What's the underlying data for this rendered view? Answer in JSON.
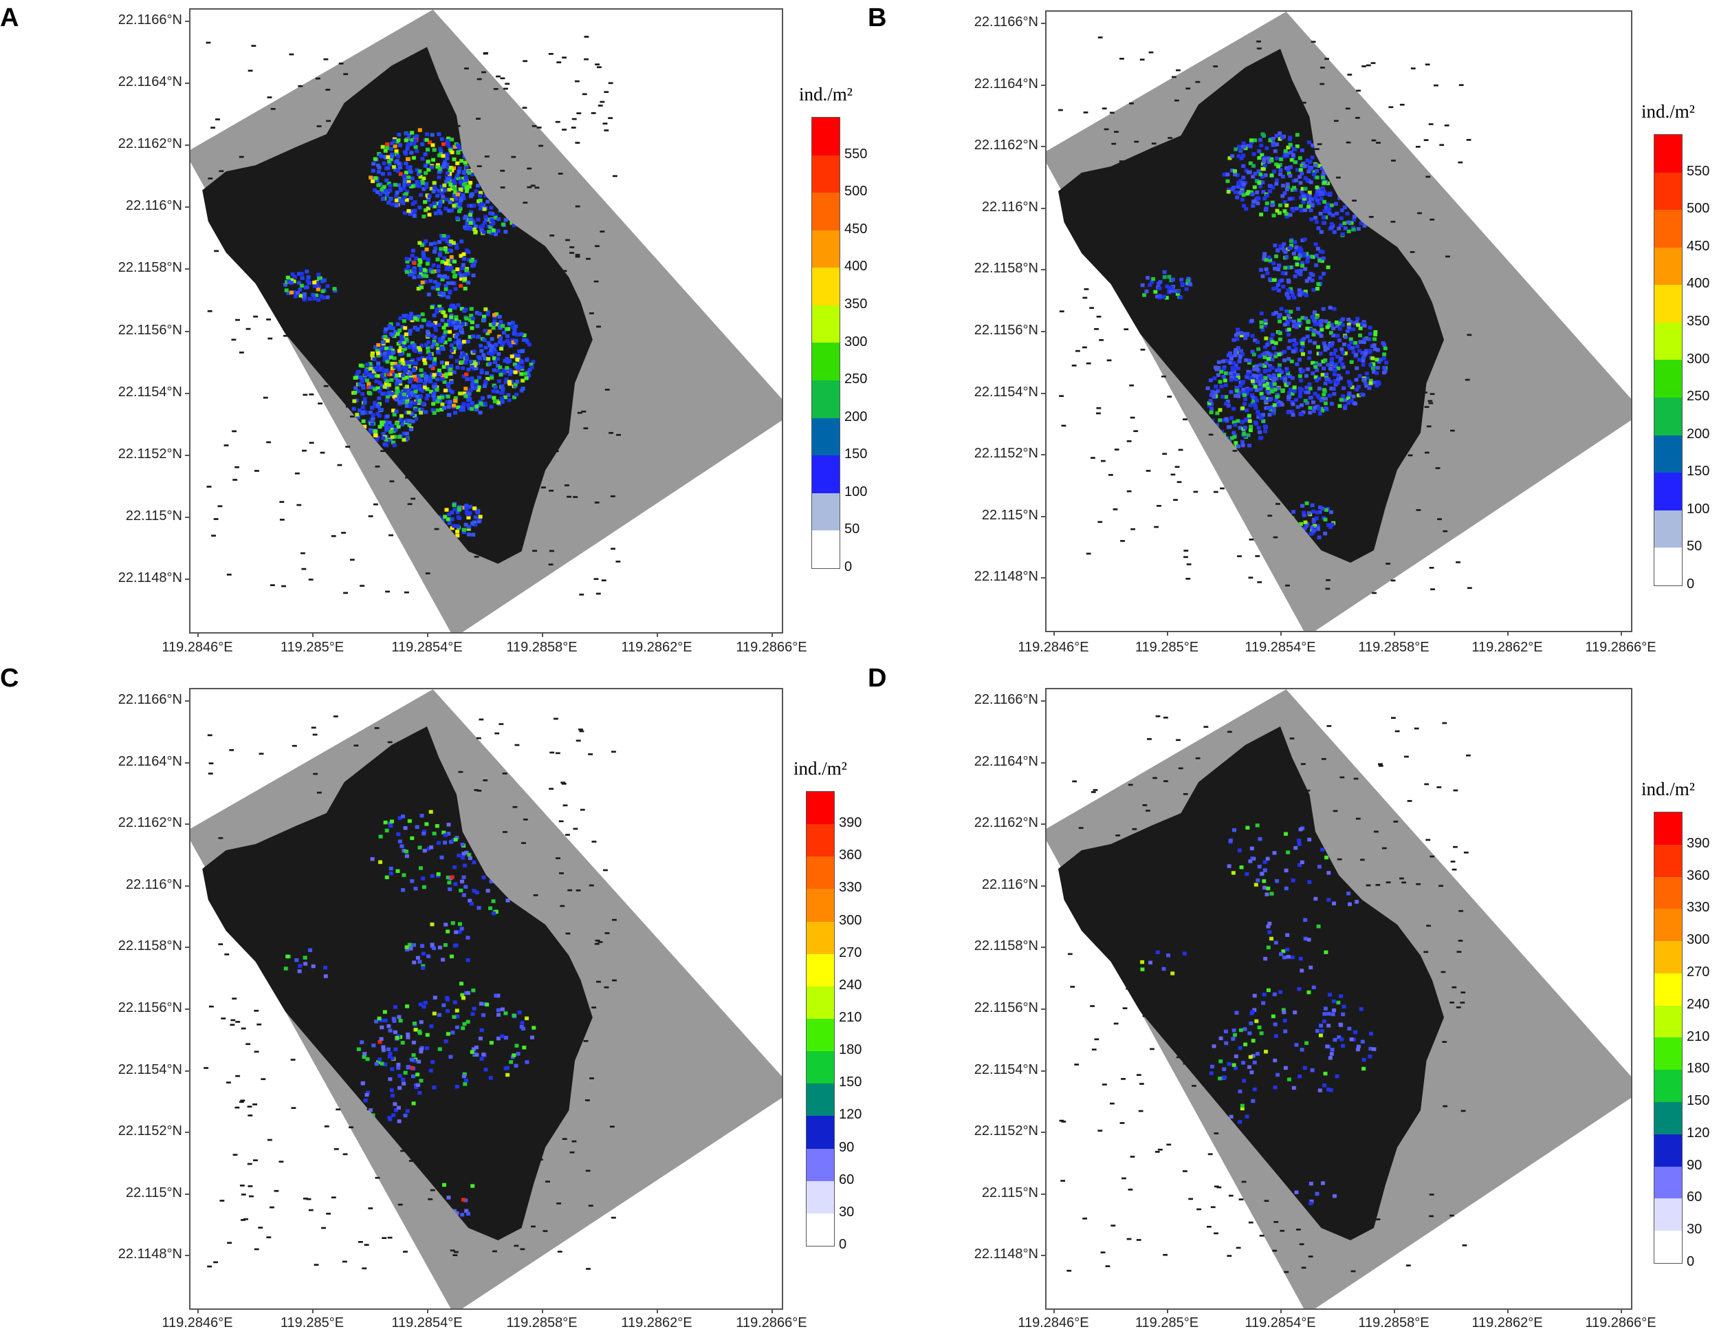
{
  "panels": [
    {
      "letter": "A",
      "legend_title": "ind./m²",
      "legend_ticks": [
        "550",
        "500",
        "450",
        "400",
        "350",
        "300",
        "250",
        "200",
        "150",
        "100",
        "50",
        "0"
      ],
      "legend_colors": [
        "#ff0000",
        "#ff3300",
        "#ff6600",
        "#ff9900",
        "#ffdd00",
        "#bbff00",
        "#33dd00",
        "#11bb44",
        "#0066aa",
        "#2222ff",
        "#aabbdd",
        "#ffffff"
      ],
      "hotspot_palette": "high"
    },
    {
      "letter": "B",
      "legend_title": "ind./m²",
      "legend_ticks": [
        "550",
        "500",
        "450",
        "400",
        "350",
        "300",
        "250",
        "200",
        "150",
        "100",
        "50",
        "0"
      ],
      "legend_colors": [
        "#ff0000",
        "#ff3300",
        "#ff6600",
        "#ff9900",
        "#ffdd00",
        "#bbff00",
        "#33dd00",
        "#11bb44",
        "#0066aa",
        "#2222ff",
        "#aabbdd",
        "#ffffff"
      ],
      "hotspot_palette": "mid"
    },
    {
      "letter": "C",
      "legend_title": "ind./m²",
      "legend_ticks": [
        "390",
        "360",
        "330",
        "300",
        "270",
        "240",
        "210",
        "180",
        "150",
        "120",
        "90",
        "60",
        "30",
        "0"
      ],
      "legend_colors": [
        "#ff0000",
        "#ff3300",
        "#ff6600",
        "#ff8800",
        "#ffbb00",
        "#ffff00",
        "#bbff00",
        "#44ee00",
        "#11cc33",
        "#008877",
        "#1122cc",
        "#7777ff",
        "#ddddff",
        "#ffffff"
      ],
      "hotspot_palette": "low"
    },
    {
      "letter": "D",
      "legend_title": "ind./m²",
      "legend_ticks": [
        "390",
        "360",
        "330",
        "300",
        "270",
        "240",
        "210",
        "180",
        "150",
        "120",
        "90",
        "60",
        "30",
        "0"
      ],
      "legend_colors": [
        "#ff0000",
        "#ff3300",
        "#ff6600",
        "#ff8800",
        "#ffbb00",
        "#ffff00",
        "#bbff00",
        "#44ee00",
        "#11cc33",
        "#008877",
        "#1122cc",
        "#7777ff",
        "#ddddff",
        "#ffffff"
      ],
      "hotspot_palette": "lowest"
    }
  ],
  "y_axis_labels": [
    "22.1166°N",
    "22.1164°N",
    "22.1162°N",
    "22.116°N",
    "22.1158°N",
    "22.1156°N",
    "22.1154°N",
    "22.1152°N",
    "22.115°N",
    "22.1148°N"
  ],
  "x_axis_labels": [
    "119.2846°E",
    "119.285°E",
    "119.2854°E",
    "119.2858°E",
    "119.2862°E",
    "119.2866°E"
  ],
  "colors": {
    "survey_area": "#999999",
    "seabed": "#1a1a1a",
    "frame": "#555555"
  }
}
